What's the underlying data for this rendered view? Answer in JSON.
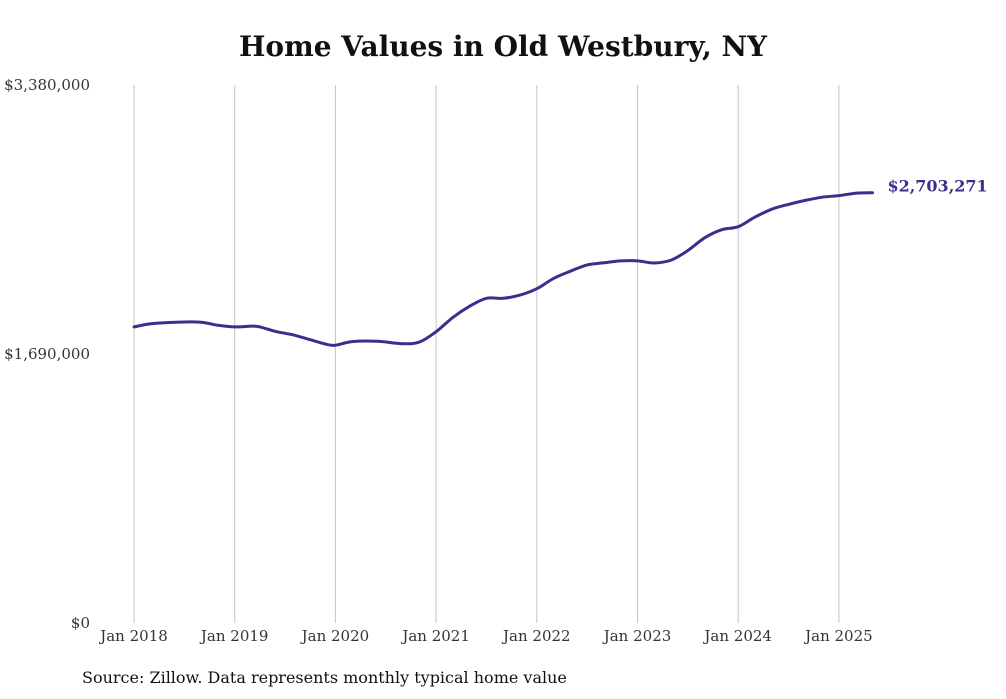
{
  "chart_data": {
    "type": "line",
    "title": "Home Values in Old Westbury, NY",
    "xlabel": "",
    "ylabel": "",
    "ylim": [
      0,
      3380000
    ],
    "y_ticks": [
      {
        "value": 0,
        "label": "$0"
      },
      {
        "value": 1690000,
        "label": "$1,690,000"
      },
      {
        "value": 3380000,
        "label": "$3,380,000"
      }
    ],
    "x_ticks": [
      "Jan 2018",
      "Jan 2019",
      "Jan 2020",
      "Jan 2021",
      "Jan 2022",
      "Jan 2023",
      "Jan 2024",
      "Jan 2025"
    ],
    "x_start": "2018-01",
    "x_end": "2025-05",
    "grid": "vertical",
    "line_color": "#3a2f8f",
    "series": [
      {
        "name": "",
        "x": [
          "2018-01",
          "2018-03",
          "2018-06",
          "2018-09",
          "2018-11",
          "2019-01",
          "2019-03",
          "2019-04",
          "2019-06",
          "2019-08",
          "2019-10",
          "2019-12",
          "2020-01",
          "2020-03",
          "2020-06",
          "2020-09",
          "2020-11",
          "2021-01",
          "2021-03",
          "2021-05",
          "2021-07",
          "2021-09",
          "2021-11",
          "2022-01",
          "2022-03",
          "2022-05",
          "2022-07",
          "2022-09",
          "2022-11",
          "2023-01",
          "2023-03",
          "2023-05",
          "2023-07",
          "2023-09",
          "2023-11",
          "2024-01",
          "2024-03",
          "2024-05",
          "2024-07",
          "2024-09",
          "2024-11",
          "2025-01",
          "2025-03",
          "2025-05"
        ],
        "values": [
          1860000,
          1880000,
          1890000,
          1890000,
          1870000,
          1860000,
          1865000,
          1860000,
          1830000,
          1810000,
          1780000,
          1750000,
          1745000,
          1768000,
          1770000,
          1755000,
          1765000,
          1830000,
          1920000,
          1990000,
          2040000,
          2040000,
          2060000,
          2100000,
          2165000,
          2210000,
          2250000,
          2263000,
          2275000,
          2275000,
          2262000,
          2280000,
          2340000,
          2420000,
          2470000,
          2490000,
          2550000,
          2600000,
          2630000,
          2655000,
          2675000,
          2685000,
          2700000,
          2703271
        ]
      }
    ],
    "end_label": "$2,703,271",
    "source": "Source: Zillow. Data represents monthly typical home value"
  }
}
